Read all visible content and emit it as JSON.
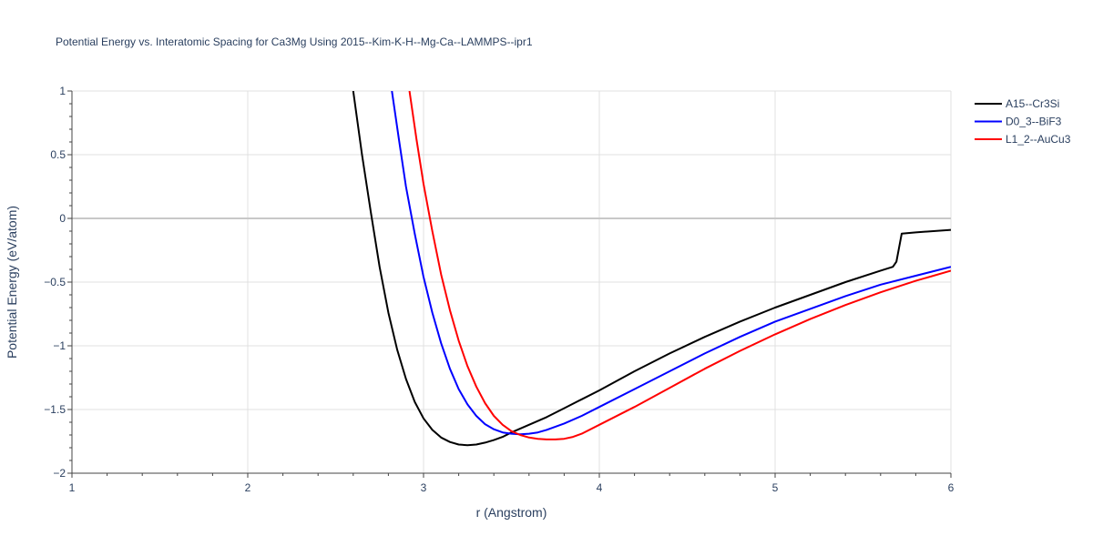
{
  "chart_data": {
    "type": "line",
    "title": "Potential Energy vs. Interatomic Spacing for Ca3Mg Using 2015--Kim-K-H--Mg-Ca--LAMMPS--ipr1",
    "xlabel": "r (Angstrom)",
    "ylabel": "Potential Energy (eV/atom)",
    "xlim": [
      1,
      6
    ],
    "ylim": [
      -2,
      1
    ],
    "x_ticks": [
      1,
      2,
      3,
      4,
      5,
      6
    ],
    "x_tick_labels": [
      "1",
      "2",
      "3",
      "4",
      "5",
      "6"
    ],
    "y_ticks": [
      -2,
      -1.5,
      -1,
      -0.5,
      0,
      0.5,
      1
    ],
    "y_tick_labels": [
      "−2",
      "−1.5",
      "−1",
      "−0.5",
      "0",
      "0.5",
      "1"
    ],
    "grid": true,
    "legend_position": "top-right",
    "series": [
      {
        "name": "A15--Cr3Si",
        "color": "#000000",
        "x": [
          2.6,
          2.65,
          2.7,
          2.75,
          2.8,
          2.85,
          2.9,
          2.95,
          3.0,
          3.05,
          3.1,
          3.15,
          3.2,
          3.25,
          3.3,
          3.35,
          3.4,
          3.45,
          3.5,
          3.6,
          3.7,
          3.8,
          3.9,
          4.0,
          4.2,
          4.4,
          4.6,
          4.8,
          5.0,
          5.2,
          5.4,
          5.6,
          5.67,
          5.69,
          5.72,
          5.8,
          6.0
        ],
        "y": [
          1.0,
          0.5,
          0.05,
          -0.38,
          -0.74,
          -1.03,
          -1.26,
          -1.44,
          -1.57,
          -1.66,
          -1.72,
          -1.755,
          -1.775,
          -1.78,
          -1.775,
          -1.76,
          -1.74,
          -1.715,
          -1.68,
          -1.62,
          -1.56,
          -1.49,
          -1.42,
          -1.35,
          -1.2,
          -1.06,
          -0.93,
          -0.81,
          -0.7,
          -0.6,
          -0.5,
          -0.41,
          -0.38,
          -0.34,
          -0.12,
          -0.11,
          -0.09
        ]
      },
      {
        "name": "D0_3--BiF3",
        "color": "#0000ff",
        "x": [
          2.82,
          2.86,
          2.9,
          2.95,
          3.0,
          3.05,
          3.1,
          3.15,
          3.2,
          3.25,
          3.3,
          3.35,
          3.4,
          3.45,
          3.5,
          3.55,
          3.6,
          3.65,
          3.7,
          3.8,
          3.9,
          4.0,
          4.2,
          4.4,
          4.6,
          4.8,
          5.0,
          5.2,
          5.4,
          5.6,
          5.8,
          6.0
        ],
        "y": [
          1.0,
          0.62,
          0.25,
          -0.12,
          -0.46,
          -0.74,
          -0.98,
          -1.18,
          -1.34,
          -1.46,
          -1.55,
          -1.615,
          -1.655,
          -1.68,
          -1.69,
          -1.695,
          -1.69,
          -1.68,
          -1.66,
          -1.61,
          -1.55,
          -1.48,
          -1.34,
          -1.2,
          -1.06,
          -0.93,
          -0.81,
          -0.71,
          -0.61,
          -0.52,
          -0.45,
          -0.38
        ]
      },
      {
        "name": "L1_2--AuCu3",
        "color": "#ff0000",
        "x": [
          2.92,
          2.96,
          3.0,
          3.05,
          3.1,
          3.15,
          3.2,
          3.25,
          3.3,
          3.35,
          3.4,
          3.45,
          3.5,
          3.55,
          3.6,
          3.65,
          3.7,
          3.75,
          3.8,
          3.85,
          3.9,
          4.0,
          4.2,
          4.4,
          4.6,
          4.8,
          5.0,
          5.2,
          5.4,
          5.6,
          5.8,
          6.0
        ],
        "y": [
          1.0,
          0.62,
          0.27,
          -0.1,
          -0.44,
          -0.72,
          -0.96,
          -1.16,
          -1.32,
          -1.45,
          -1.55,
          -1.62,
          -1.67,
          -1.7,
          -1.72,
          -1.73,
          -1.735,
          -1.735,
          -1.73,
          -1.715,
          -1.69,
          -1.62,
          -1.48,
          -1.33,
          -1.18,
          -1.04,
          -0.91,
          -0.79,
          -0.68,
          -0.58,
          -0.49,
          -0.41
        ]
      }
    ]
  }
}
